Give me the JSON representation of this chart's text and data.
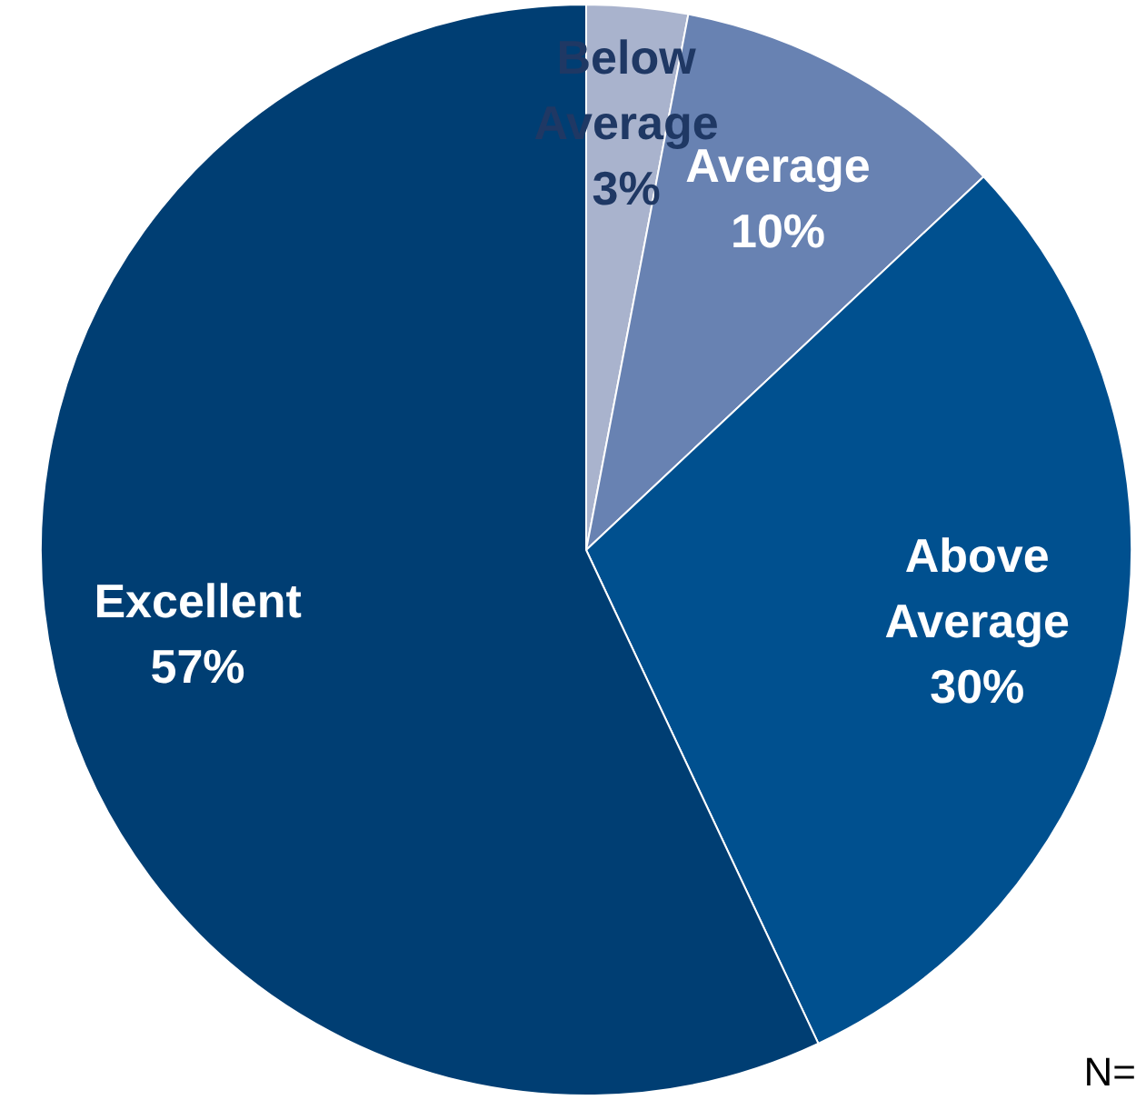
{
  "chart_data": {
    "type": "pie",
    "categories": [
      "Below Average",
      "Average",
      "Above Average",
      "Excellent"
    ],
    "values": [
      3,
      10,
      30,
      57
    ],
    "value_labels": [
      "3%",
      "10%",
      "30%",
      "57%"
    ],
    "colors": [
      "#a9b3cd",
      "#6882b2",
      "#00508f",
      "#003e73"
    ],
    "annotations": [
      "N="
    ]
  }
}
